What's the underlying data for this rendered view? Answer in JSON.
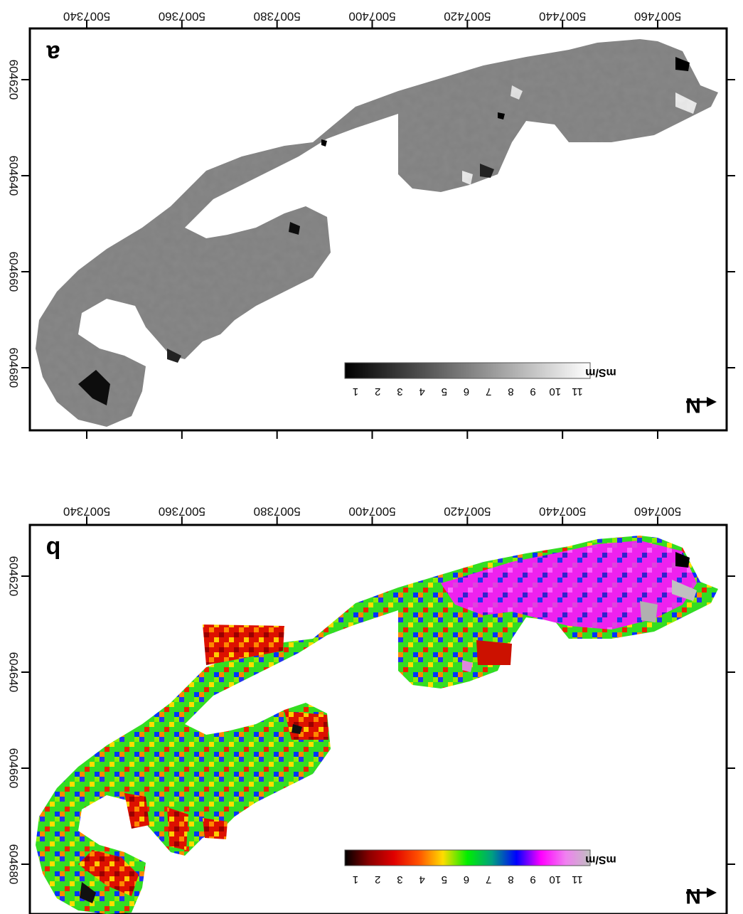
{
  "panels": [
    {
      "label": "a",
      "colormap": "grayscale",
      "colorbar": {
        "unit": "mS/m",
        "ticks": [
          "1",
          "2",
          "3",
          "4",
          "5",
          "6",
          "7",
          "8",
          "9",
          "10",
          "11"
        ],
        "stops": [
          "#000000",
          "#ffffff"
        ]
      },
      "north_label": "N"
    },
    {
      "label": "b",
      "colormap": "spectral",
      "colorbar": {
        "unit": "mS/m",
        "ticks": [
          "1",
          "2",
          "3",
          "4",
          "5",
          "6",
          "7",
          "8",
          "9",
          "10",
          "11"
        ],
        "stops": [
          "#000000",
          "#8b0000",
          "#e00000",
          "#ff5000",
          "#ffdd00",
          "#00ee00",
          "#00a080",
          "#0000ff",
          "#ff00ff",
          "#f080f0",
          "#c0c0c0"
        ]
      },
      "north_label": "N"
    }
  ],
  "axes": {
    "easting_ticks": [
      "604620",
      "604640",
      "604660",
      "604680"
    ],
    "northing_ticks": [
      "5007340",
      "5007360",
      "5007380",
      "5007400",
      "5007420",
      "5007440",
      "5007460"
    ]
  }
}
